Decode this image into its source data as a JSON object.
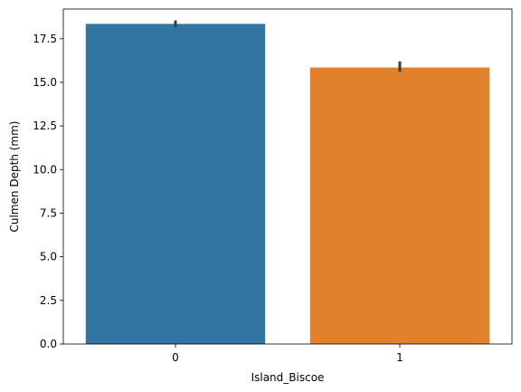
{
  "chart_data": {
    "type": "bar",
    "title": "",
    "xlabel": "Island_Biscoe",
    "ylabel": "Culmen Depth (mm)",
    "categories": [
      "0",
      "1"
    ],
    "values": [
      18.35,
      15.85
    ],
    "error_bars": [
      {
        "low": 18.15,
        "high": 18.55
      },
      {
        "low": 15.6,
        "high": 16.2
      }
    ],
    "ylim": [
      0,
      19.2
    ],
    "yticks": [
      0.0,
      2.5,
      5.0,
      7.5,
      10.0,
      12.5,
      15.0,
      17.5
    ],
    "ytick_labels": [
      "0.0",
      "2.5",
      "5.0",
      "7.5",
      "10.0",
      "12.5",
      "15.0",
      "17.5"
    ],
    "colors": [
      "#3274a1",
      "#e1812c"
    ],
    "error_color": "#3d3d3d",
    "grid": false,
    "legend": false
  }
}
